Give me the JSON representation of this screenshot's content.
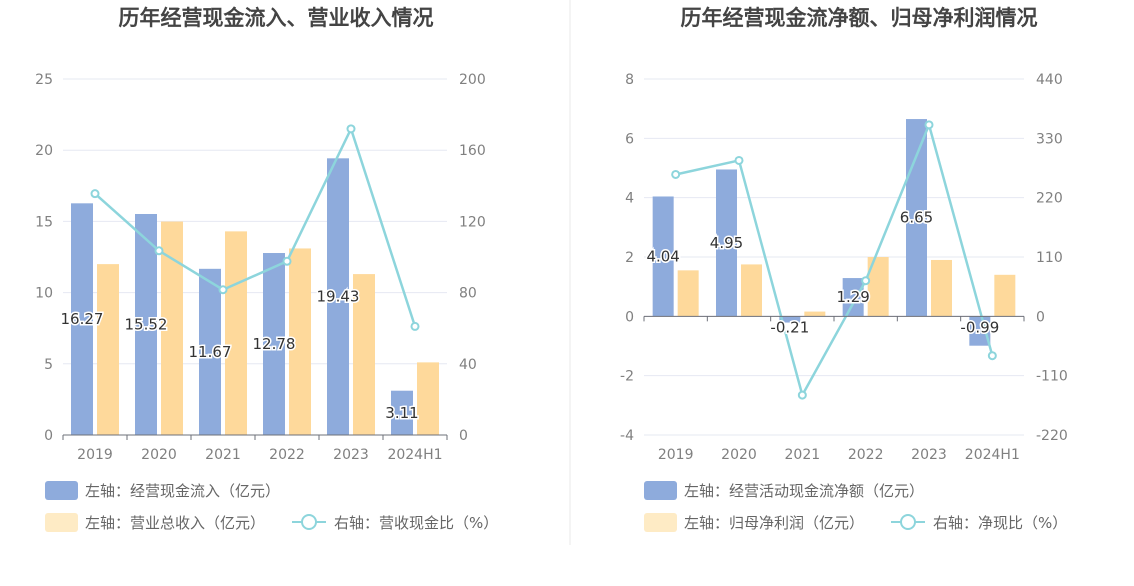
{
  "colors": {
    "bar_primary": "#8eabdc",
    "bar_secondary": "#fed99b",
    "line": "#8dd5dc",
    "grid": "#e6e8f2",
    "axis_text": "#808080",
    "title": "#444444",
    "divider": "#e8e8e8"
  },
  "chart_data": [
    {
      "type": "bar",
      "title": "历年经营现金流入、营业收入情况",
      "categories": [
        "2019",
        "2020",
        "2021",
        "2022",
        "2023",
        "2024H1"
      ],
      "left_axis": {
        "ylim": [
          0,
          25
        ],
        "ticks": [
          "0",
          "5",
          "10",
          "15",
          "20",
          "25"
        ]
      },
      "right_axis": {
        "ylim": [
          0,
          200
        ],
        "ticks": [
          "0",
          "40",
          "80",
          "120",
          "160",
          "200"
        ]
      },
      "series": [
        {
          "name": "左轴：经营现金流入（亿元）",
          "kind": "bar",
          "axis": "left",
          "values": [
            16.27,
            15.52,
            11.67,
            12.78,
            19.43,
            3.11
          ],
          "labels": [
            "16.27",
            "15.52",
            "11.67",
            "12.78",
            "19.43",
            "3.11"
          ]
        },
        {
          "name": "左轴：营业总收入（亿元）",
          "kind": "bar",
          "axis": "left",
          "values": [
            12.0,
            14.99,
            14.3,
            13.1,
            11.3,
            5.1
          ]
        },
        {
          "name": "右轴：营收现金比（%）",
          "kind": "line",
          "axis": "right",
          "values": [
            135.6,
            103.5,
            81.6,
            97.6,
            172.0,
            61.0
          ]
        }
      ],
      "grid": true,
      "legend_position": "bottom-left"
    },
    {
      "type": "bar",
      "title": "历年经营现金流净额、归母净利润情况",
      "categories": [
        "2019",
        "2020",
        "2021",
        "2022",
        "2023",
        "2024H1"
      ],
      "left_axis": {
        "ylim": [
          -4,
          8
        ],
        "ticks": [
          "-4",
          "-2",
          "0",
          "2",
          "4",
          "6",
          "8"
        ]
      },
      "right_axis": {
        "ylim": [
          -220,
          440
        ],
        "ticks": [
          "-220",
          "-110",
          "0",
          "110",
          "220",
          "330",
          "440"
        ]
      },
      "series": [
        {
          "name": "左轴：经营活动现金流净额（亿元）",
          "kind": "bar",
          "axis": "left",
          "values": [
            4.04,
            4.95,
            -0.21,
            1.29,
            6.65,
            -0.99
          ],
          "labels": [
            "4.04",
            "4.95",
            "-0.21",
            "1.29",
            "6.65",
            "-0.99"
          ]
        },
        {
          "name": "左轴：归母净利润（亿元）",
          "kind": "bar",
          "axis": "left",
          "values": [
            1.55,
            1.75,
            0.16,
            2.0,
            1.9,
            1.4
          ]
        },
        {
          "name": "右轴：净现比（%）",
          "kind": "line",
          "axis": "right",
          "values": [
            263,
            289,
            -146,
            66,
            355,
            -73
          ]
        }
      ],
      "grid": true,
      "legend_position": "bottom-left"
    }
  ]
}
